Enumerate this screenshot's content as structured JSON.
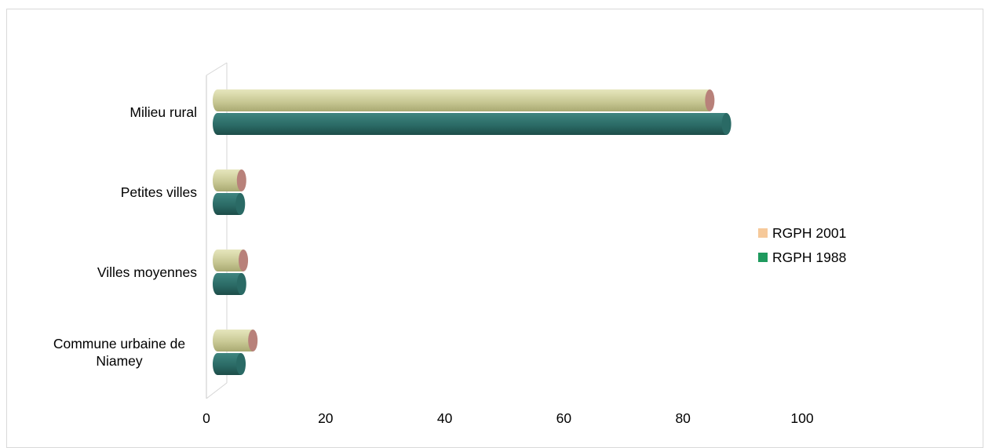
{
  "chart_data": {
    "type": "bar",
    "orientation": "horizontal",
    "style": "3d-cylinder",
    "categories": [
      "Milieu rural",
      "Petites villes",
      "Villes moyennes",
      "Commune urbaine de Niamey"
    ],
    "category_lines": [
      [
        "Milieu rural"
      ],
      [
        "Petites villes"
      ],
      [
        "Villes moyennes"
      ],
      [
        "Commune urbaine de",
        "Niamey"
      ]
    ],
    "series": [
      {
        "name": "RGPH 2001",
        "values": [
          84.5,
          5.9,
          6.2,
          7.8
        ],
        "color": "#c9c995",
        "legend_color": "#f6c99a"
      },
      {
        "name": "RGPH 1988",
        "values": [
          87.3,
          5.7,
          5.9,
          5.8
        ],
        "color": "#2b6b66",
        "legend_color": "#1f9a5e"
      }
    ],
    "xlim": [
      0,
      100
    ],
    "xticks": [
      "0",
      "20",
      "40",
      "60",
      "80",
      "100"
    ],
    "grid": false,
    "legend": "right"
  }
}
